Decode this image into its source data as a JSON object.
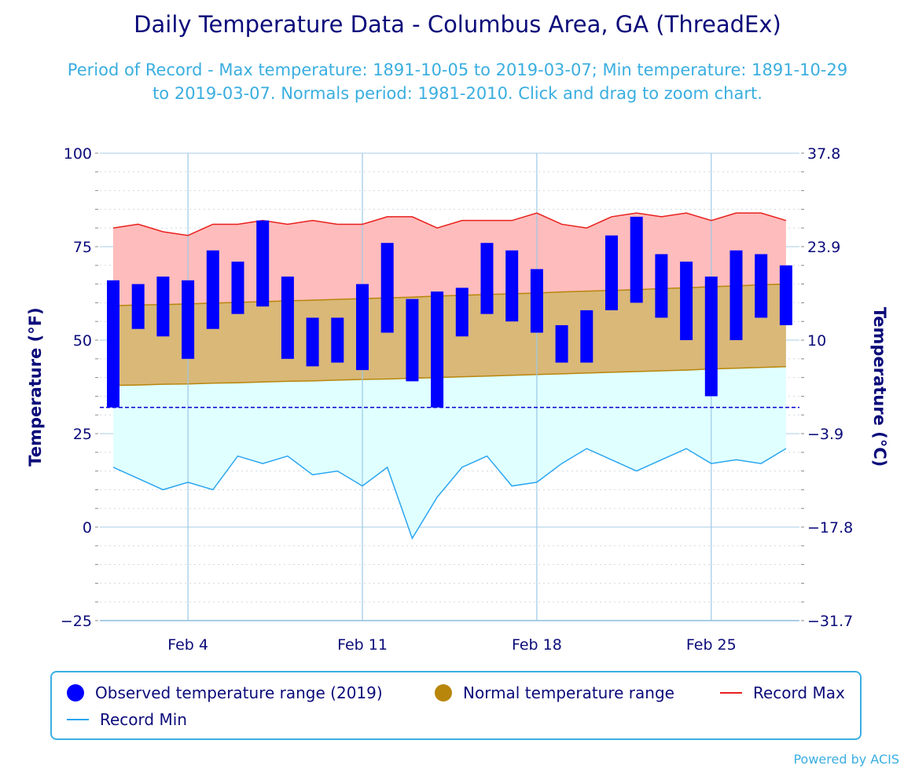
{
  "chart_data": {
    "type": "bar",
    "title": "Daily Temperature Data - Columbus Area, GA (ThreadEx)",
    "subtitle": "Period of Record - Max temperature: 1891-10-05 to 2019-03-07; Min temperature: 1891-10-29 to 2019-03-07. Normals period: 1981-2010. Click and drag to zoom chart.",
    "ylabel": "Temperature (°F)",
    "ylabel_right": "Temperature (°C)",
    "ylim": [
      -25,
      100
    ],
    "yticks": [
      "100",
      "75",
      "50",
      "25",
      "0",
      "−25"
    ],
    "yticks_right": [
      "37.8",
      "23.9",
      "10",
      "−3.9",
      "−17.8",
      "−31.7"
    ],
    "x_dates": [
      "Feb 1",
      "Feb 2",
      "Feb 3",
      "Feb 4",
      "Feb 5",
      "Feb 6",
      "Feb 7",
      "Feb 8",
      "Feb 9",
      "Feb 10",
      "Feb 11",
      "Feb 12",
      "Feb 13",
      "Feb 14",
      "Feb 15",
      "Feb 16",
      "Feb 17",
      "Feb 18",
      "Feb 19",
      "Feb 20",
      "Feb 21",
      "Feb 22",
      "Feb 23",
      "Feb 24",
      "Feb 25",
      "Feb 26",
      "Feb 27",
      "Feb 28"
    ],
    "xtick_labels": [
      {
        "date": "Feb 4",
        "label": "Feb 4"
      },
      {
        "date": "Feb 11",
        "label": "Feb 11"
      },
      {
        "date": "Feb 18",
        "label": "Feb 18"
      },
      {
        "date": "Feb 25",
        "label": "Feb 25"
      }
    ],
    "freezing_line": 32,
    "series": [
      {
        "name": "Observed temperature range (2019)",
        "color": "#0000ff",
        "low": [
          32,
          53,
          51,
          45,
          53,
          57,
          59,
          45,
          43,
          44,
          42,
          52,
          39,
          32,
          51,
          57,
          55,
          52,
          44,
          44,
          58,
          60,
          56,
          50,
          35,
          50,
          56,
          54
        ],
        "high": [
          66,
          65,
          67,
          66,
          74,
          71,
          82,
          67,
          56,
          56,
          65,
          76,
          61,
          63,
          64,
          76,
          74,
          69,
          54,
          58,
          78,
          83,
          73,
          71,
          67,
          74,
          73,
          70
        ]
      },
      {
        "name": "Normal temperature range",
        "color": "#b8860b",
        "low": [
          37.9,
          38.0,
          38.2,
          38.3,
          38.5,
          38.6,
          38.8,
          39.0,
          39.1,
          39.3,
          39.5,
          39.6,
          39.8,
          40.0,
          40.2,
          40.4,
          40.6,
          40.8,
          41.0,
          41.2,
          41.4,
          41.6,
          41.8,
          42.0,
          42.3,
          42.5,
          42.7,
          42.9
        ],
        "high": [
          59.2,
          59.4,
          59.5,
          59.7,
          59.9,
          60.1,
          60.3,
          60.5,
          60.7,
          60.9,
          61.1,
          61.3,
          61.5,
          61.8,
          62.0,
          62.2,
          62.4,
          62.6,
          62.9,
          63.1,
          63.3,
          63.5,
          63.8,
          64.0,
          64.3,
          64.5,
          64.8,
          65.0
        ]
      },
      {
        "name": "Record Max",
        "color": "#e8201c",
        "values": [
          80,
          81,
          79,
          78,
          81,
          81,
          82,
          81,
          82,
          81,
          81,
          83,
          83,
          80,
          82,
          82,
          82,
          84,
          81,
          80,
          83,
          84,
          83,
          84,
          82,
          84,
          84,
          82
        ]
      },
      {
        "name": "Record Min",
        "color": "#2aa6f0",
        "values": [
          16,
          13,
          10,
          12,
          10,
          19,
          17,
          19,
          14,
          15,
          11,
          16,
          -3,
          8,
          16,
          19,
          11,
          12,
          17,
          21,
          18,
          15,
          18,
          21,
          17,
          18,
          17,
          21
        ]
      }
    ],
    "legend": {
      "position": "bottom"
    },
    "grid": true,
    "credit": "Powered by ACIS"
  }
}
